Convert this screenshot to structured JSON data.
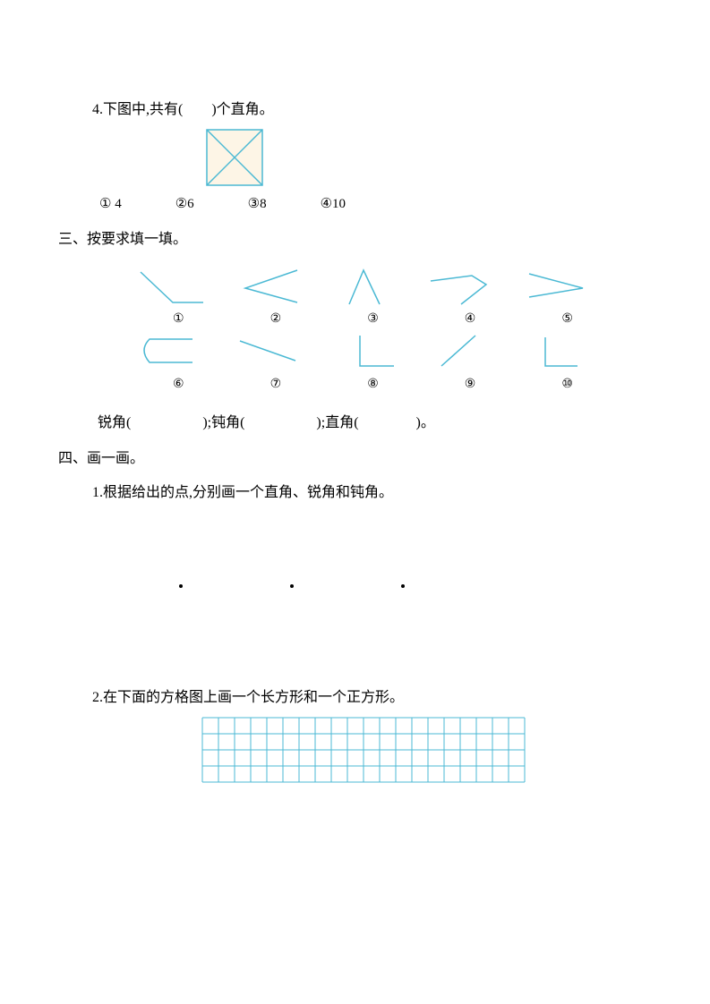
{
  "stroke_color": "#4bb9d4",
  "fill_color": "#fdf5e6",
  "text_color": "#000000",
  "q4": {
    "text": "4.下图中,共有(　　)个直角。",
    "options": [
      "① 4",
      "②6",
      "③8",
      "④10"
    ],
    "square": {
      "size": 62,
      "stroke_width": 1.5
    }
  },
  "section3": {
    "title": "三、按要求填一填。",
    "angles": [
      {
        "id": "①",
        "type": "obtuse"
      },
      {
        "id": "②",
        "type": "acute"
      },
      {
        "id": "③",
        "type": "acute-up"
      },
      {
        "id": "④",
        "type": "reflex"
      },
      {
        "id": "⑤",
        "type": "acute"
      },
      {
        "id": "⑥",
        "type": "curve"
      },
      {
        "id": "⑦",
        "type": "line"
      },
      {
        "id": "⑧",
        "type": "right"
      },
      {
        "id": "⑨",
        "type": "diag"
      },
      {
        "id": "⑩",
        "type": "right-down"
      }
    ],
    "fill": "锐角(　　　　　);钝角(　　　　　);直角(　　　　)。"
  },
  "section4": {
    "title": "四、画一画。",
    "q1": "1.根据给出的点,分别画一个直角、锐角和钝角。",
    "q2": "2.在下面的方格图上画一个长方形和一个正方形。",
    "grid": {
      "cols": 20,
      "rows": 4,
      "cell": 18,
      "stroke_width": 1
    }
  }
}
